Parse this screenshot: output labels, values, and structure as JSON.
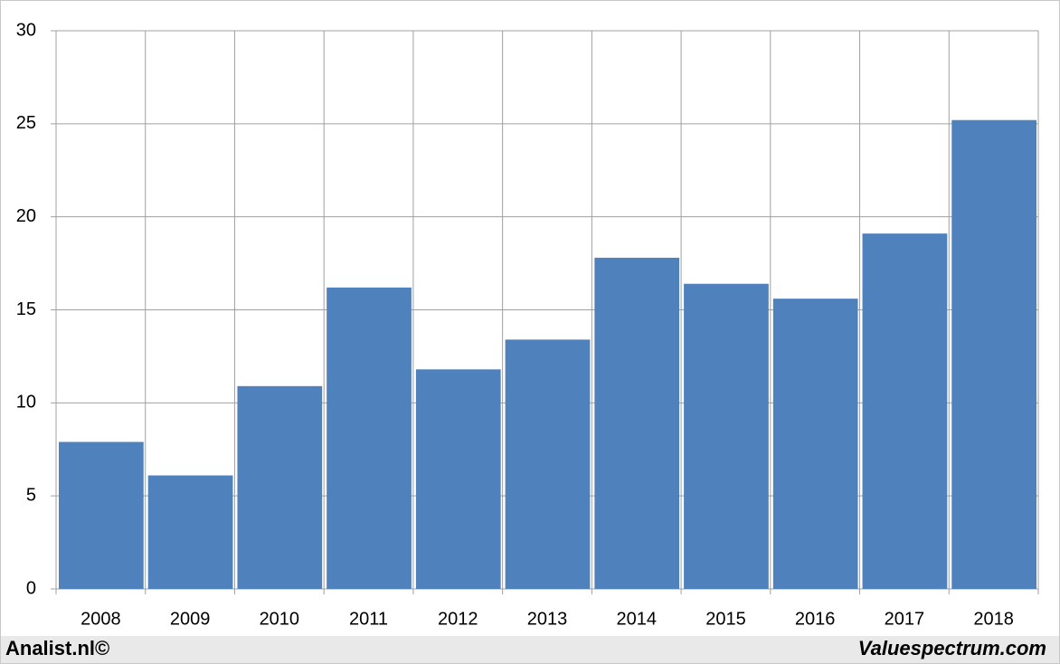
{
  "chart_data": {
    "type": "bar",
    "categories": [
      "2008",
      "2009",
      "2010",
      "2011",
      "2012",
      "2013",
      "2014",
      "2015",
      "2016",
      "2017",
      "2018"
    ],
    "values": [
      7.9,
      6.1,
      10.9,
      16.2,
      11.8,
      13.4,
      17.8,
      16.4,
      15.6,
      19.1,
      25.2
    ],
    "color": "#4f81bd",
    "ylim": [
      0,
      30
    ],
    "yticks": [
      0,
      5,
      10,
      15,
      20,
      25,
      30
    ],
    "grid": true
  },
  "footer": {
    "left": "Analist.nl©",
    "right": "Valuespectrum.com"
  }
}
